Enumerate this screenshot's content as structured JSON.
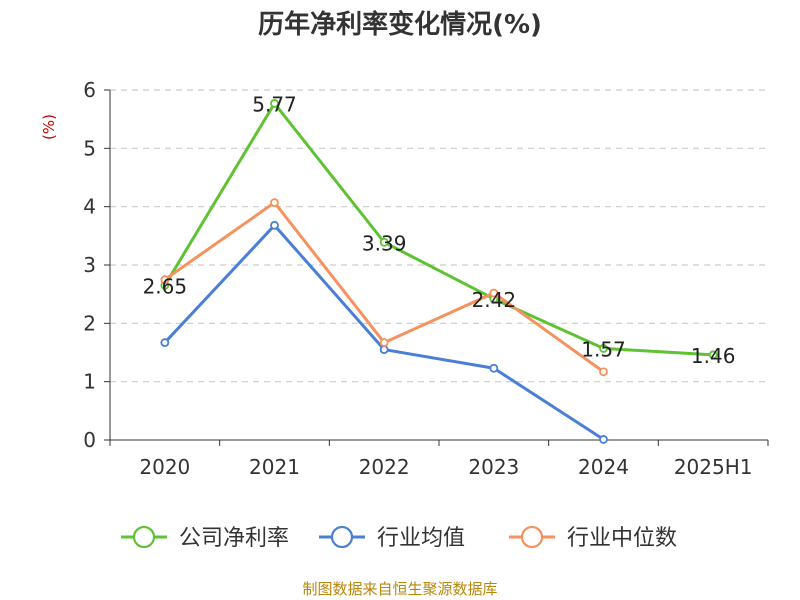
{
  "chart_data": {
    "type": "line",
    "title": "历年净利率变化情况(%)",
    "ylabel": "(%)",
    "xlabel": "",
    "categories": [
      "2020",
      "2021",
      "2022",
      "2023",
      "2024",
      "2025H1"
    ],
    "ylim": [
      0,
      6
    ],
    "yticks": [
      "0",
      "1",
      "2",
      "3",
      "4",
      "5",
      "6"
    ],
    "grid": true,
    "legend_position": "bottom",
    "series": [
      {
        "name": "公司净利率",
        "color": "#5fc232",
        "values": [
          2.65,
          5.77,
          3.39,
          2.42,
          1.57,
          1.46
        ],
        "labels": [
          "2.65",
          "5.77",
          "3.39",
          "2.42",
          "1.57",
          "1.46"
        ]
      },
      {
        "name": "行业均值",
        "color": "#4a7fd6",
        "values": [
          1.67,
          3.68,
          1.55,
          1.23,
          0.01,
          null
        ]
      },
      {
        "name": "行业中位数",
        "color": "#f5925e",
        "values": [
          2.75,
          4.07,
          1.67,
          2.52,
          1.17,
          null
        ]
      }
    ]
  },
  "source_note": "制图数据来自恒生聚源数据库",
  "colors": {
    "axis": "#333333",
    "grid": "#cccccc",
    "ylabel": "#cc0000",
    "source": "#b8860b"
  }
}
